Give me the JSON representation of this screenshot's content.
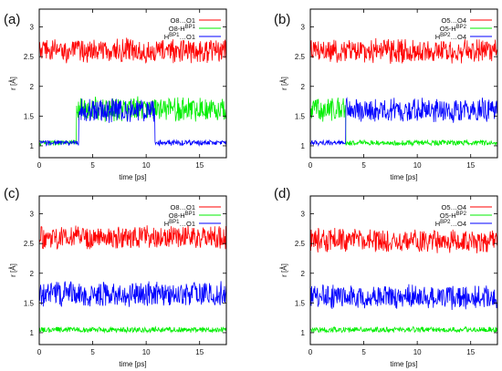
{
  "chart_data": [
    {
      "panel": "(a)",
      "type": "line",
      "xlabel": "time [ps]",
      "ylabel": "r [Å]",
      "xlim": [
        0,
        17.5
      ],
      "ylim": [
        0.8,
        3.3
      ],
      "xticks": [
        0,
        5,
        10,
        15
      ],
      "yticks": [
        1,
        1.5,
        2,
        2.5,
        3
      ],
      "legend_position": "top-right",
      "series": [
        {
          "legend": [
            "O8…O1"
          ],
          "color": "#ff0000",
          "mean": 2.6,
          "noise": 0.13,
          "segments": [
            [
              0,
              17.5,
              2.6
            ]
          ]
        },
        {
          "legend": [
            "O8-H",
            "BP1"
          ],
          "color": "#00ee00",
          "mean": 1.05,
          "noise": 0.03,
          "segments": [
            [
              0,
              3.5,
              1.05
            ],
            [
              3.5,
              17.5,
              1.62
            ]
          ]
        },
        {
          "legend": [
            "H",
            "BP1",
            "…O1"
          ],
          "color": "#0000ff",
          "mean": 1.05,
          "noise": 0.03,
          "segments": [
            [
              0,
              3.7,
              1.05
            ],
            [
              3.7,
              10.8,
              1.6
            ],
            [
              10.8,
              17.5,
              1.05
            ]
          ]
        }
      ]
    },
    {
      "panel": "(b)",
      "type": "line",
      "xlabel": "time [ps]",
      "ylabel": "r [Å]",
      "xlim": [
        0,
        17.5
      ],
      "ylim": [
        0.8,
        3.3
      ],
      "xticks": [
        0,
        5,
        10,
        15
      ],
      "yticks": [
        1,
        1.5,
        2,
        2.5,
        3
      ],
      "legend_position": "top-right",
      "series": [
        {
          "legend": [
            "O5…O4"
          ],
          "color": "#ff0000",
          "mean": 2.6,
          "noise": 0.13,
          "segments": [
            [
              0,
              17.5,
              2.6
            ]
          ]
        },
        {
          "legend": [
            "O5-H",
            "BP2"
          ],
          "color": "#00ee00",
          "mean": 1.05,
          "noise": 0.03,
          "segments": [
            [
              0,
              3.3,
              1.62
            ],
            [
              3.3,
              17.5,
              1.05
            ]
          ]
        },
        {
          "legend": [
            "H",
            "BP2",
            "…O4"
          ],
          "color": "#0000ff",
          "mean": 1.05,
          "noise": 0.03,
          "segments": [
            [
              0,
              3.3,
              1.05
            ],
            [
              3.3,
              17.5,
              1.6
            ]
          ]
        }
      ]
    },
    {
      "panel": "(c)",
      "type": "line",
      "xlabel": "time [ps]",
      "ylabel": "r [Å]",
      "xlim": [
        0,
        17.5
      ],
      "ylim": [
        0.8,
        3.3
      ],
      "xticks": [
        0,
        5,
        10,
        15
      ],
      "yticks": [
        1,
        1.5,
        2,
        2.5,
        3
      ],
      "legend_position": "top-right",
      "series": [
        {
          "legend": [
            "O8…O1"
          ],
          "color": "#ff0000",
          "mean": 2.6,
          "noise": 0.13,
          "segments": [
            [
              0,
              17.5,
              2.6
            ]
          ]
        },
        {
          "legend": [
            "O8-H",
            "BP1"
          ],
          "color": "#00ee00",
          "mean": 1.05,
          "noise": 0.03,
          "segments": [
            [
              0,
              17.5,
              1.05
            ]
          ]
        },
        {
          "legend": [
            "H",
            "BP1",
            "…O1"
          ],
          "color": "#0000ff",
          "mean": 1.65,
          "noise": 0.12,
          "segments": [
            [
              0,
              17.5,
              1.65
            ]
          ]
        }
      ]
    },
    {
      "panel": "(d)",
      "type": "line",
      "xlabel": "time [ps]",
      "ylabel": "r [Å]",
      "xlim": [
        0,
        17.5
      ],
      "ylim": [
        0.8,
        3.3
      ],
      "xticks": [
        0,
        5,
        10,
        15
      ],
      "yticks": [
        1,
        1.5,
        2,
        2.5,
        3
      ],
      "legend_position": "top-right",
      "series": [
        {
          "legend": [
            "O5…O4"
          ],
          "color": "#ff0000",
          "mean": 2.55,
          "noise": 0.13,
          "segments": [
            [
              0,
              17.5,
              2.55
            ]
          ]
        },
        {
          "legend": [
            "O5-H",
            "BP2"
          ],
          "color": "#00ee00",
          "mean": 1.05,
          "noise": 0.03,
          "segments": [
            [
              0,
              17.5,
              1.05
            ]
          ]
        },
        {
          "legend": [
            "H",
            "BP2",
            "…O4"
          ],
          "color": "#0000ff",
          "mean": 1.6,
          "noise": 0.12,
          "segments": [
            [
              0,
              17.5,
              1.6
            ]
          ]
        }
      ]
    }
  ]
}
